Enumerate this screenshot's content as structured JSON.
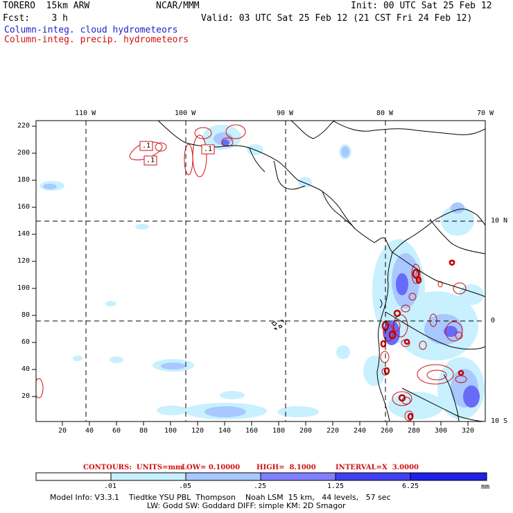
{
  "header": {
    "model": "TORERO  15km ARW",
    "center": "NCAR/MMM",
    "init": "Init: 00 UTC Sat 25 Feb 12",
    "fcst": "Fcst:    3 h",
    "valid": "Valid: 03 UTC Sat 25 Feb 12 (21 CST Fri 24 Feb 12)",
    "legend_cloud": "Column-integ. cloud hydrometeors",
    "legend_precip": "Column-integ. precip. hydrometeors"
  },
  "colors": {
    "cloud_text": "#2020c8",
    "precip_text": "#d01010",
    "scale": [
      "#ffffff",
      "#c8f0ff",
      "#a8c8ff",
      "#8080ff",
      "#4040f0",
      "#2020e8"
    ]
  },
  "map": {
    "top_lon_labels": [
      "110 W",
      "100 W",
      "90 W",
      "80 W",
      "70 W"
    ],
    "right_lat_labels": [
      "10 N",
      "0",
      "10 S"
    ],
    "y_ticks": [
      "220",
      "200",
      "180",
      "160",
      "140",
      "120",
      "100",
      "80",
      "60",
      "40",
      "20"
    ],
    "x_ticks": [
      "20",
      "40",
      "60",
      "80",
      "100",
      "120",
      "140",
      "160",
      "180",
      "200",
      "220",
      "240",
      "260",
      "280",
      "300",
      "320"
    ],
    "contour_labels": [
      ".1",
      ".1",
      ".1"
    ]
  },
  "contours_line": {
    "units": "CONTOURS:  UNITS=mm",
    "low": "LOW= 0.10000",
    "high": "HIGH=  8.1000",
    "interval": "INTERVAL=X  3.0000"
  },
  "colorbar": {
    "labels": [
      ".01",
      ".05",
      ".25",
      "1.25",
      "6.25"
    ],
    "unit": "mm"
  },
  "model_info": {
    "line1": "Model Info: V3.3.1    Tiedtke YSU PBL  Thompson    Noah LSM  15 km,   44 levels,   57 sec",
    "line2": "LW: Godd SW: Goddard DIFF: simple KM: 2D Smagor"
  }
}
